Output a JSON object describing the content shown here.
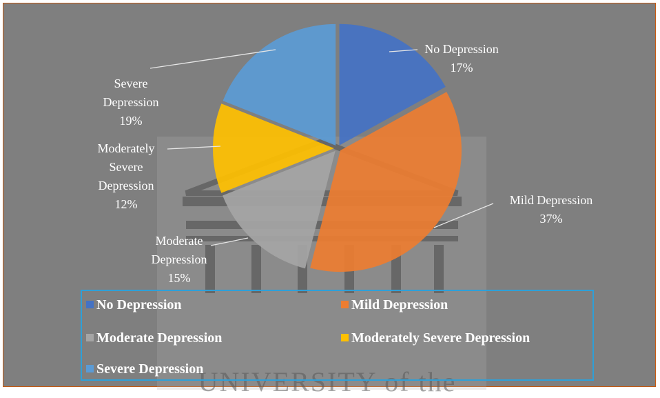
{
  "chart_data": {
    "type": "pie",
    "categories": [
      "No Depression",
      "Mild Depression",
      "Moderate Depression",
      "Moderately Severe Depression",
      "Severe Depression"
    ],
    "values": [
      17,
      37,
      15,
      12,
      19
    ],
    "value_labels": [
      "17%",
      "37%",
      "15%",
      "12%",
      "19%"
    ],
    "colors": [
      "#4472c4",
      "#ed7d31",
      "#a5a5a5",
      "#ffc000",
      "#5b9bd5"
    ],
    "legend": "bottom"
  },
  "watermark": "UNIVERSITY of the"
}
